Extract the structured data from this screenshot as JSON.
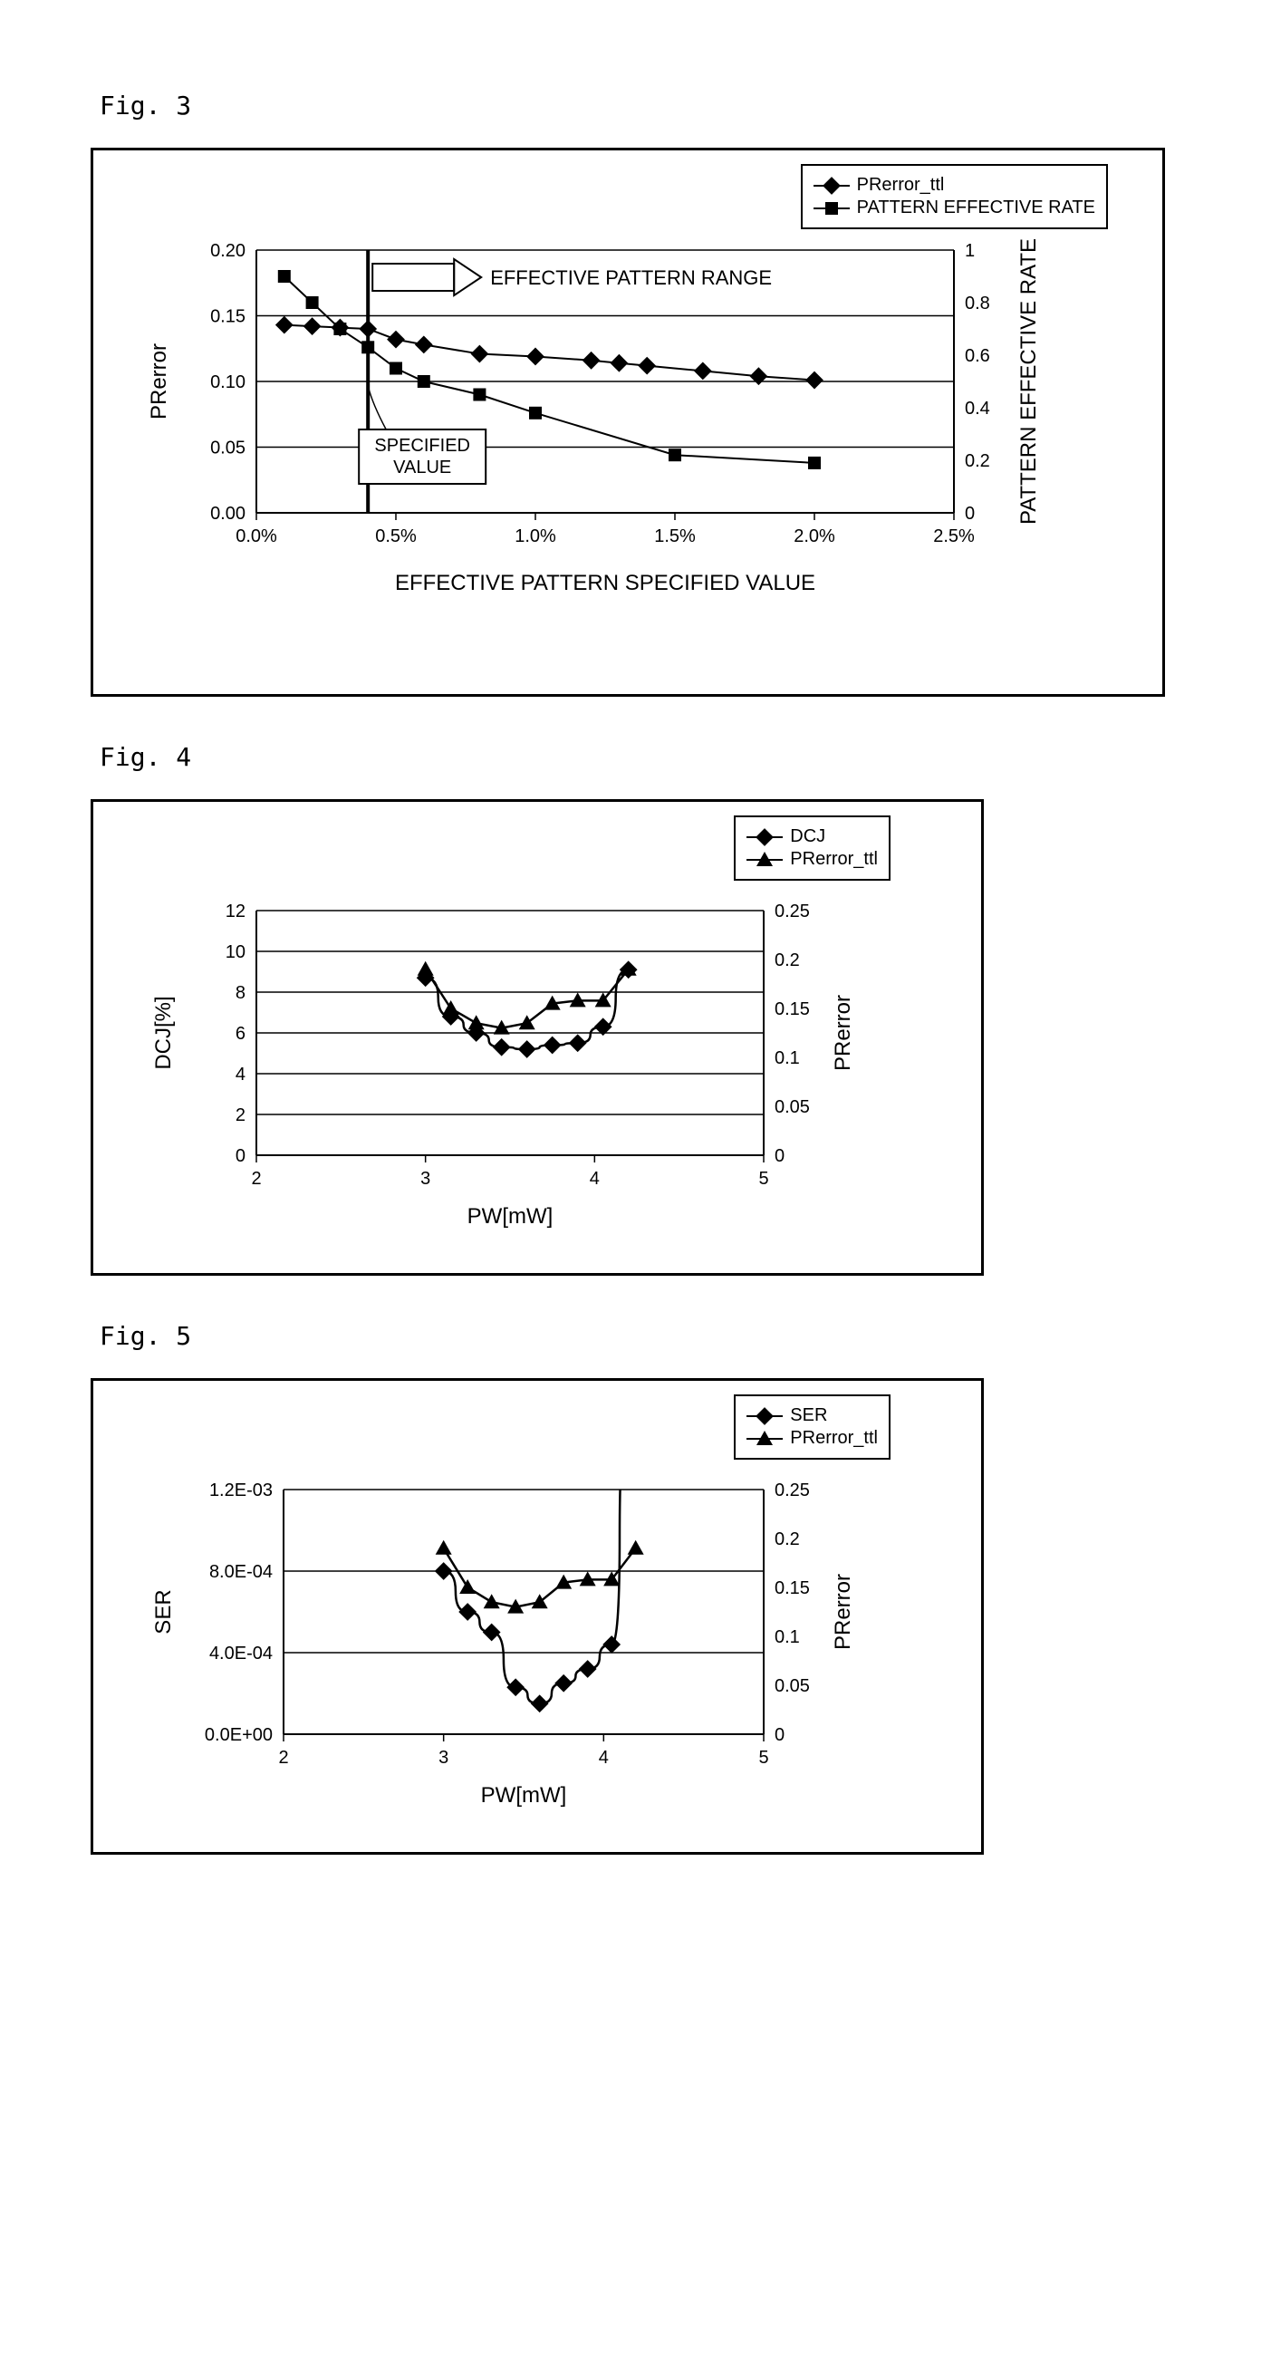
{
  "fig3": {
    "label": "Fig. 3",
    "type": "dual-axis-line",
    "legend": [
      {
        "marker": "diamond",
        "label": "PRerror_ttl"
      },
      {
        "marker": "square",
        "label": "PATTERN EFFECTIVE RATE"
      }
    ],
    "x_label": "EFFECTIVE PATTERN SPECIFIED VALUE",
    "y1_label": "PRerror",
    "y2_label": "PATTERN EFFECTIVE RATE",
    "x_ticks": [
      "0.0%",
      "0.5%",
      "1.0%",
      "1.5%",
      "2.0%",
      "2.5%"
    ],
    "x_tick_vals": [
      0,
      0.5,
      1.0,
      1.5,
      2.0,
      2.5
    ],
    "y1_ticks": [
      "0.00",
      "0.05",
      "0.10",
      "0.15",
      "0.20"
    ],
    "y1_tick_vals": [
      0,
      0.05,
      0.1,
      0.15,
      0.2
    ],
    "y2_ticks": [
      "0",
      "0.2",
      "0.4",
      "0.6",
      "0.8",
      "1"
    ],
    "y2_tick_vals": [
      0,
      0.2,
      0.4,
      0.6,
      0.8,
      1.0
    ],
    "series1": {
      "x": [
        0.1,
        0.2,
        0.3,
        0.4,
        0.5,
        0.6,
        0.8,
        1.0,
        1.2,
        1.3,
        1.4,
        1.6,
        1.8,
        2.0
      ],
      "y": [
        0.143,
        0.142,
        0.141,
        0.14,
        0.132,
        0.128,
        0.121,
        0.119,
        0.116,
        0.114,
        0.112,
        0.108,
        0.104,
        0.101
      ]
    },
    "series2": {
      "x": [
        0.1,
        0.2,
        0.3,
        0.4,
        0.5,
        0.6,
        0.8,
        1.0,
        1.5,
        2.0
      ],
      "y": [
        0.9,
        0.8,
        0.7,
        0.63,
        0.55,
        0.5,
        0.45,
        0.38,
        0.22,
        0.19
      ]
    },
    "vline_x": 0.4,
    "annotation1": "EFFECTIVE PATTERN RANGE",
    "annotation2": "SPECIFIED VALUE",
    "font_size_ticks": 20,
    "font_size_labels": 24,
    "colors": {
      "line": "#000000",
      "grid": "#000000",
      "bg": "#ffffff"
    }
  },
  "fig4": {
    "label": "Fig. 4",
    "type": "dual-axis-line",
    "legend": [
      {
        "marker": "diamond",
        "label": "DCJ"
      },
      {
        "marker": "triangle",
        "label": "PRerror_ttl"
      }
    ],
    "x_label": "PW[mW]",
    "y1_label": "DCJ[%]",
    "y2_label": "PRerror",
    "x_ticks": [
      "2",
      "3",
      "4",
      "5"
    ],
    "x_tick_vals": [
      2,
      3,
      4,
      5
    ],
    "y1_ticks": [
      "0",
      "2",
      "4",
      "6",
      "8",
      "10",
      "12"
    ],
    "y1_tick_vals": [
      0,
      2,
      4,
      6,
      8,
      10,
      12
    ],
    "y2_ticks": [
      "0",
      "0.05",
      "0.1",
      "0.15",
      "0.2",
      "0.25"
    ],
    "y2_tick_vals": [
      0,
      0.05,
      0.1,
      0.15,
      0.2,
      0.25
    ],
    "series1": {
      "x": [
        3.0,
        3.15,
        3.3,
        3.45,
        3.6,
        3.75,
        3.9,
        4.05,
        4.2
      ],
      "y": [
        8.7,
        6.8,
        6.0,
        5.3,
        5.2,
        5.4,
        5.5,
        6.3,
        9.1
      ]
    },
    "series2": {
      "x": [
        3.0,
        3.15,
        3.3,
        3.45,
        3.6,
        3.75,
        3.9,
        4.05,
        4.2
      ],
      "y": [
        0.19,
        0.15,
        0.135,
        0.13,
        0.135,
        0.155,
        0.158,
        0.158,
        0.19
      ]
    },
    "font_size_ticks": 20,
    "font_size_labels": 24,
    "colors": {
      "line": "#000000",
      "grid": "#000000",
      "bg": "#ffffff"
    }
  },
  "fig5": {
    "label": "Fig. 5",
    "type": "dual-axis-line",
    "legend": [
      {
        "marker": "diamond",
        "label": "SER"
      },
      {
        "marker": "triangle",
        "label": "PRerror_ttl"
      }
    ],
    "x_label": "PW[mW]",
    "y1_label": "SER",
    "y2_label": "PRerror",
    "x_ticks": [
      "2",
      "3",
      "4",
      "5"
    ],
    "x_tick_vals": [
      2,
      3,
      4,
      5
    ],
    "y1_ticks": [
      "0.0E+00",
      "4.0E-04",
      "8.0E-04",
      "1.2E-03"
    ],
    "y1_tick_vals": [
      0,
      0.0004,
      0.0008,
      0.0012
    ],
    "y2_ticks": [
      "0",
      "0.05",
      "0.1",
      "0.15",
      "0.2",
      "0.25"
    ],
    "y2_tick_vals": [
      0,
      0.05,
      0.1,
      0.15,
      0.2,
      0.25
    ],
    "series1": {
      "x": [
        3.0,
        3.15,
        3.3,
        3.45,
        3.6,
        3.75,
        3.9,
        4.05,
        4.15
      ],
      "y": [
        0.0008,
        0.0006,
        0.0005,
        0.00023,
        0.00015,
        0.00025,
        0.00032,
        0.00044,
        0.0015
      ]
    },
    "series2": {
      "x": [
        3.0,
        3.15,
        3.3,
        3.45,
        3.6,
        3.75,
        3.9,
        4.05,
        4.2
      ],
      "y": [
        0.19,
        0.15,
        0.135,
        0.13,
        0.135,
        0.155,
        0.158,
        0.158,
        0.19
      ]
    },
    "font_size_ticks": 20,
    "font_size_labels": 24,
    "colors": {
      "line": "#000000",
      "grid": "#000000",
      "bg": "#ffffff"
    }
  }
}
